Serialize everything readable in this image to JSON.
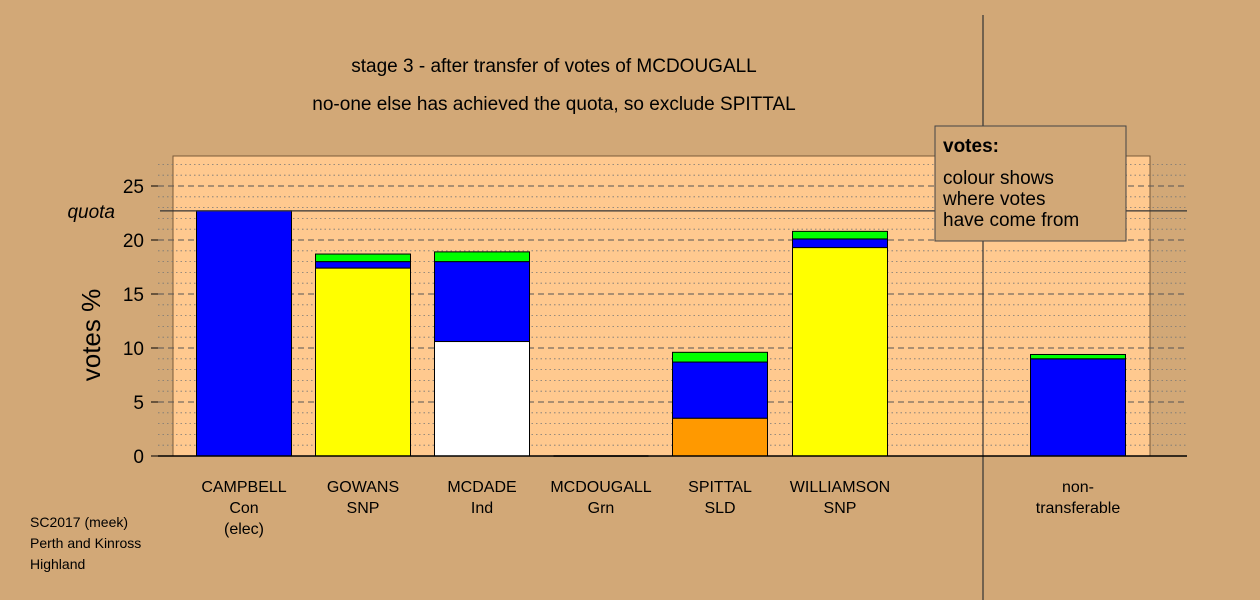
{
  "chart_data": {
    "type": "bar",
    "stacked": true,
    "title": "stage 3 - after transfer of votes of MCDOUGALL",
    "subtitle": "no-one else has achieved the quota, so exclude SPITTAL",
    "ylabel": "votes %",
    "ylim": [
      0,
      27.5
    ],
    "yticks": [
      "0",
      "5",
      "10",
      "15",
      "20",
      "25"
    ],
    "grid": true,
    "quota_label": "quota",
    "quota": 22.7,
    "candidates": [
      {
        "name": "CAMPBELL",
        "party": "Con",
        "note": "(elec)",
        "segments": [
          {
            "color": "#0000ff",
            "value": 22.7
          }
        ]
      },
      {
        "name": "GOWANS",
        "party": "SNP",
        "note": "",
        "segments": [
          {
            "color": "#ffff00",
            "value": 17.4
          },
          {
            "color": "#0000ff",
            "value": 0.6
          },
          {
            "color": "#00ff00",
            "value": 0.7
          }
        ]
      },
      {
        "name": "MCDADE",
        "party": "Ind",
        "note": "",
        "segments": [
          {
            "color": "#ffffff",
            "value": 10.6
          },
          {
            "color": "#0000ff",
            "value": 7.4
          },
          {
            "color": "#00ff00",
            "value": 0.9
          }
        ]
      },
      {
        "name": "MCDOUGALL",
        "party": "Grn",
        "note": "",
        "segments": []
      },
      {
        "name": "SPITTAL",
        "party": "SLD",
        "note": "",
        "segments": [
          {
            "color": "#ff9900",
            "value": 3.5
          },
          {
            "color": "#0000ff",
            "value": 5.2
          },
          {
            "color": "#00ff00",
            "value": 0.9
          }
        ]
      },
      {
        "name": "WILLIAMSON",
        "party": "SNP",
        "note": "",
        "segments": [
          {
            "color": "#ffff00",
            "value": 19.3
          },
          {
            "color": "#0000ff",
            "value": 0.8
          },
          {
            "color": "#00ff00",
            "value": 0.7
          }
        ]
      }
    ],
    "nontransferable": {
      "label_line1": "non-",
      "label_line2": "transferable",
      "segments": [
        {
          "color": "#0000ff",
          "value": 9.0
        },
        {
          "color": "#00ff00",
          "value": 0.4
        }
      ]
    },
    "legend": {
      "title": "votes:",
      "lines": [
        "colour shows",
        "where votes",
        "have come from"
      ],
      "placement": "top-right"
    },
    "footnote": [
      "SC2017 (meek)",
      "Perth and Kinross",
      "Highland"
    ],
    "colors": {
      "background": "#d2a877",
      "plot_fill": "#ffc98f",
      "legend_fill": "#d2a877"
    }
  }
}
